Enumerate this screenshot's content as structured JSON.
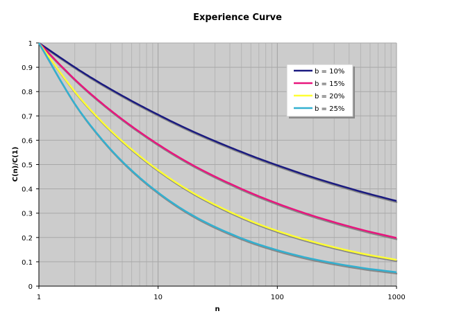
{
  "chart_data": {
    "type": "line",
    "title": "Experience Curve",
    "xlabel": "n",
    "ylabel": "C(n)/C(1)",
    "x_scale": "log",
    "xlim": [
      1,
      1000
    ],
    "ylim": [
      0,
      1
    ],
    "x_ticks": [
      "1",
      "10",
      "100",
      "1000"
    ],
    "y_ticks": [
      "0",
      "0.1",
      "0.2",
      "0.3",
      "0.4",
      "0.5",
      "0.6",
      "0.7",
      "0.8",
      "0.9",
      "1"
    ],
    "grid": true,
    "legend_position": "top-right",
    "plot_background": "#cccccc",
    "x": [
      1,
      2,
      3,
      5,
      10,
      20,
      50,
      100,
      200,
      500,
      1000
    ],
    "series": [
      {
        "name": "b = 10%",
        "color": "#1a1a80",
        "values": [
          1,
          0.9,
          0.846,
          0.783,
          0.705,
          0.634,
          0.552,
          0.497,
          0.447,
          0.389,
          0.35
        ]
      },
      {
        "name": "b = 15%",
        "color": "#e8157d",
        "values": [
          1,
          0.85,
          0.773,
          0.686,
          0.583,
          0.495,
          0.4,
          0.34,
          0.289,
          0.233,
          0.198
        ]
      },
      {
        "name": "b = 20%",
        "color": "#ffff33",
        "values": [
          1,
          0.8,
          0.702,
          0.596,
          0.477,
          0.381,
          0.284,
          0.227,
          0.182,
          0.135,
          0.108
        ]
      },
      {
        "name": "b = 25%",
        "color": "#33b0d0",
        "values": [
          1,
          0.75,
          0.634,
          0.513,
          0.385,
          0.288,
          0.197,
          0.148,
          0.111,
          0.076,
          0.057
        ]
      }
    ]
  }
}
